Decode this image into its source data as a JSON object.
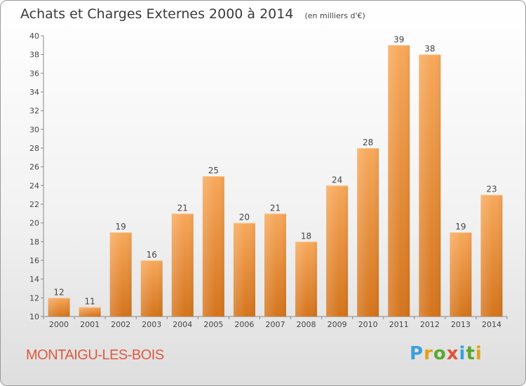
{
  "header": {
    "title": "Achats et Charges Externes 2000 à 2014",
    "unit": "(en milliers d'€)"
  },
  "footer": {
    "commune": "MONTAIGU-LES-BOIS",
    "brand": "Proxiti",
    "brand_colors": [
      "#3aa0dc",
      "#e2a01b",
      "#59a830",
      "#e0533a",
      "#3aa0dc",
      "#59a830",
      "#e2a01b"
    ]
  },
  "chart_data": {
    "type": "bar",
    "title": "Achats et Charges Externes 2000 à 2014",
    "subtitle": "(en milliers d'€)",
    "categories": [
      "2000",
      "2001",
      "2002",
      "2003",
      "2004",
      "2005",
      "2006",
      "2007",
      "2008",
      "2009",
      "2010",
      "2011",
      "2012",
      "2013",
      "2014"
    ],
    "values": [
      12,
      11,
      19,
      16,
      21,
      25,
      20,
      21,
      18,
      24,
      28,
      39,
      38,
      19,
      23
    ],
    "ylim": [
      10,
      40
    ],
    "yticks": [
      10,
      12,
      14,
      16,
      18,
      20,
      22,
      24,
      26,
      28,
      30,
      32,
      34,
      36,
      38,
      40
    ],
    "grid": false,
    "bar_color_top": "#f7a85a",
    "bar_color_bottom": "#d4741c"
  }
}
